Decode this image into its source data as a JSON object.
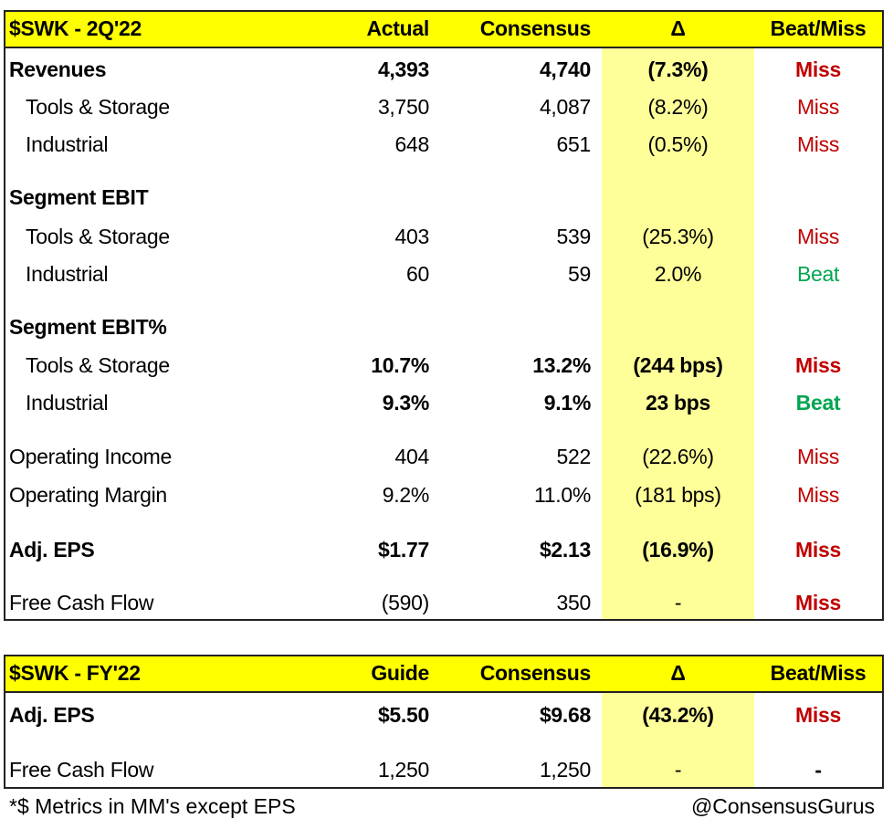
{
  "colors": {
    "header": "#ffff00",
    "delta_column": "#ffff99",
    "miss": "#c00000",
    "beat": "#00a550"
  },
  "table1": {
    "header": [
      "$SWK - 2Q'22",
      "Actual",
      "Consensus",
      "Δ",
      "Beat/Miss"
    ],
    "rows": [
      {
        "label": "Revenues",
        "actual": "4,393",
        "consensus": "4,740",
        "delta": "(7.3%)",
        "result": "Miss",
        "bold": true
      },
      {
        "label": "Tools & Storage",
        "actual": "3,750",
        "consensus": "4,087",
        "delta": "(8.2%)",
        "result": "Miss",
        "indent": true
      },
      {
        "label": "Industrial",
        "actual": "648",
        "consensus": "651",
        "delta": "(0.5%)",
        "result": "Miss",
        "indent": true
      },
      {
        "label": "Segment EBIT",
        "bold": true
      },
      {
        "label": "Tools & Storage",
        "actual": "403",
        "consensus": "539",
        "delta": "(25.3%)",
        "result": "Miss",
        "indent": true
      },
      {
        "label": "Industrial",
        "actual": "60",
        "consensus": "59",
        "delta": "2.0%",
        "result": "Beat",
        "indent": true
      },
      {
        "label": "Segment EBIT%",
        "bold": true
      },
      {
        "label": "Tools & Storage",
        "actual": "10.7%",
        "consensus": "13.2%",
        "delta": "(244 bps)",
        "result": "Miss",
        "indent": true,
        "boldvals": true
      },
      {
        "label": "Industrial",
        "actual": "9.3%",
        "consensus": "9.1%",
        "delta": "23 bps",
        "result": "Beat",
        "indent": true,
        "boldvals": true
      },
      {
        "label": "Operating Income",
        "actual": "404",
        "consensus": "522",
        "delta": "(22.6%)",
        "result": "Miss"
      },
      {
        "label": "Operating Margin",
        "actual": "9.2%",
        "consensus": "11.0%",
        "delta": "(181 bps)",
        "result": "Miss"
      },
      {
        "label": "Adj. EPS",
        "actual": "$1.77",
        "consensus": "$2.13",
        "delta": "(16.9%)",
        "result": "Miss",
        "bold": true
      },
      {
        "label": "Free Cash Flow",
        "actual": "(590)",
        "consensus": "350",
        "delta": "-",
        "result": "Miss",
        "boldresult": true
      }
    ]
  },
  "table2": {
    "header": [
      "$SWK - FY'22",
      "Guide",
      "Consensus",
      "Δ",
      "Beat/Miss"
    ],
    "rows": [
      {
        "label": "Adj. EPS",
        "actual": "$5.50",
        "consensus": "$9.68",
        "delta": "(43.2%)",
        "result": "Miss",
        "bold": true
      },
      {
        "label": "Free Cash Flow",
        "actual": "1,250",
        "consensus": "1,250",
        "delta": "-",
        "result": "-",
        "boldresult": true
      }
    ]
  },
  "footer": {
    "note": "*$ Metrics in MM's except EPS",
    "handle": "@ConsensusGurus"
  }
}
